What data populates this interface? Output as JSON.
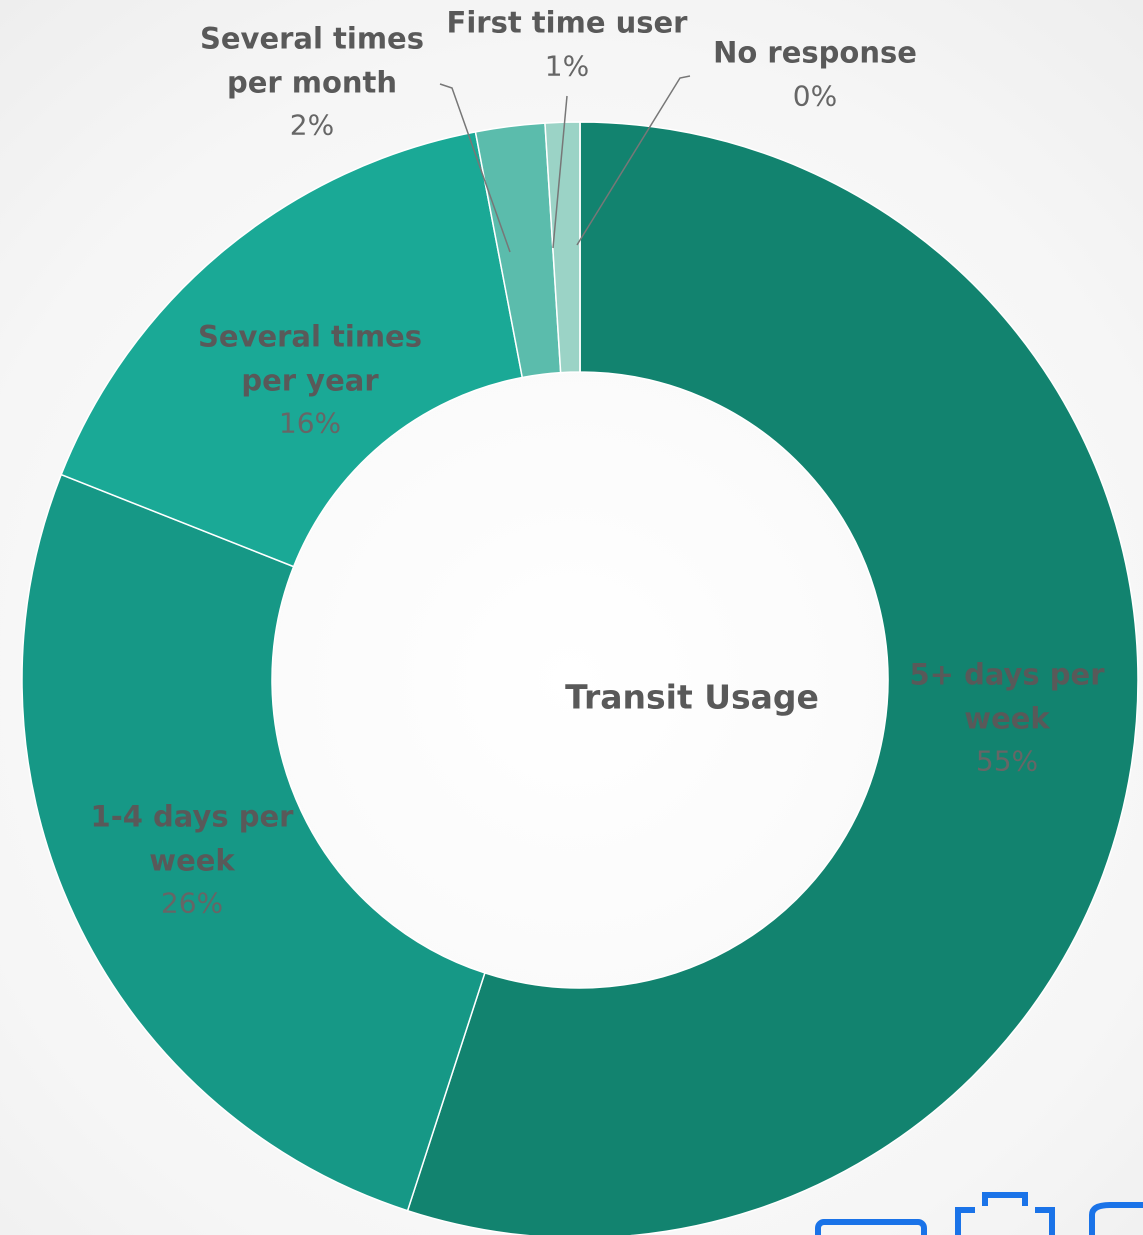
{
  "chart_data": {
    "type": "donut",
    "title": "Transit Usage",
    "categories": [
      "5+ days per week",
      "1-4 days per week",
      "Several times per year",
      "Several times per month",
      "First time user",
      "No response"
    ],
    "values": [
      55,
      26,
      16,
      2,
      1,
      0
    ],
    "value_labels": [
      "55%",
      "26%",
      "16%",
      "2%",
      "1%",
      "0%"
    ],
    "colors": [
      "#12836f",
      "#169886",
      "#1aa996",
      "#5bbcac",
      "#9bd3c6",
      "#c9e4dd"
    ]
  }
}
